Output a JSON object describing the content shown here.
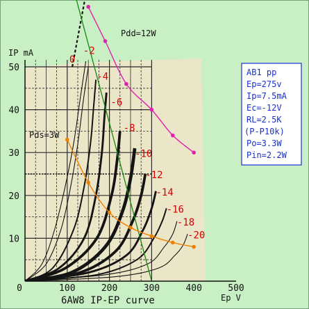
{
  "chart_data": {
    "type": "line",
    "title": "6AW8 IP-EP curve",
    "xlabel": "Ep V",
    "ylabel": "IP mA",
    "xlim": [
      0,
      500
    ],
    "ylim": [
      0,
      50
    ],
    "x_ticks": [
      "0",
      "100",
      "200",
      "300",
      "400",
      "500"
    ],
    "y_ticks": [
      "10",
      "20",
      "30",
      "40",
      "50"
    ],
    "grid": true,
    "series": [
      {
        "name": "0",
        "points": [
          [
            0,
            0
          ],
          [
            40,
            4
          ],
          [
            70,
            12
          ],
          [
            95,
            22
          ],
          [
            115,
            32
          ],
          [
            130,
            42
          ],
          [
            145,
            52
          ]
        ]
      },
      {
        "name": "-2",
        "points": [
          [
            0,
            0
          ],
          [
            50,
            4
          ],
          [
            85,
            12
          ],
          [
            108,
            22
          ],
          [
            125,
            32
          ],
          [
            138,
            42
          ],
          [
            150,
            50
          ]
        ]
      },
      {
        "name": "-4",
        "points": [
          [
            0,
            0
          ],
          [
            65,
            3
          ],
          [
            115,
            12
          ],
          [
            140,
            22
          ],
          [
            155,
            32
          ],
          [
            162,
            40
          ],
          [
            168,
            47
          ]
        ]
      },
      {
        "name": "-6",
        "points": [
          [
            0,
            0
          ],
          [
            80,
            3
          ],
          [
            140,
            10
          ],
          [
            168,
            20
          ],
          [
            182,
            30
          ],
          [
            188,
            38
          ],
          [
            193,
            44
          ]
        ]
      },
      {
        "name": "-8",
        "points": [
          [
            0,
            0
          ],
          [
            95,
            3
          ],
          [
            170,
            10
          ],
          [
            205,
            20
          ],
          [
            218,
            28
          ],
          [
            225,
            35
          ]
        ]
      },
      {
        "name": "-10",
        "points": [
          [
            0,
            0
          ],
          [
            110,
            2
          ],
          [
            190,
            8
          ],
          [
            230,
            16
          ],
          [
            250,
            24
          ],
          [
            260,
            31
          ]
        ]
      },
      {
        "name": "-12",
        "points": [
          [
            0,
            0
          ],
          [
            130,
            2
          ],
          [
            215,
            7
          ],
          [
            255,
            14
          ],
          [
            275,
            20
          ],
          [
            285,
            25
          ]
        ]
      },
      {
        "name": "-14",
        "points": [
          [
            0,
            0
          ],
          [
            150,
            2
          ],
          [
            240,
            6
          ],
          [
            280,
            12
          ],
          [
            300,
            17
          ],
          [
            310,
            21
          ]
        ]
      },
      {
        "name": "-16",
        "points": [
          [
            0,
            0
          ],
          [
            170,
            1.5
          ],
          [
            265,
            5
          ],
          [
            305,
            10
          ],
          [
            325,
            14
          ],
          [
            335,
            17
          ]
        ]
      },
      {
        "name": "-18",
        "points": [
          [
            0,
            0
          ],
          [
            190,
            1.5
          ],
          [
            290,
            4
          ],
          [
            330,
            8
          ],
          [
            350,
            11
          ],
          [
            360,
            14
          ]
        ]
      },
      {
        "name": "-20",
        "points": [
          [
            0,
            0
          ],
          [
            210,
            1
          ],
          [
            315,
            3
          ],
          [
            355,
            6
          ],
          [
            375,
            8.5
          ],
          [
            385,
            11
          ]
        ]
      }
    ],
    "pdd_curve": {
      "label": "Pdd=12W",
      "points": [
        [
          150,
          64
        ],
        [
          190,
          56
        ],
        [
          240,
          46
        ],
        [
          300,
          40
        ],
        [
          350,
          34
        ],
        [
          400,
          30
        ]
      ]
    },
    "pds_curve": {
      "label": "Pds=3W",
      "points": [
        [
          100,
          33
        ],
        [
          150,
          23
        ],
        [
          200,
          16
        ],
        [
          250,
          12.5
        ],
        [
          300,
          10.5
        ],
        [
          350,
          9
        ],
        [
          400,
          8
        ]
      ]
    },
    "load_line": {
      "points": [
        [
          110,
          70
        ],
        [
          300,
          0
        ]
      ]
    },
    "cutoff_line": {
      "points": [
        [
          112,
          50
        ],
        [
          150,
          70
        ]
      ]
    },
    "grid_labels": [
      {
        "text": "0",
        "x": 105,
        "y": 51
      },
      {
        "text": "-2",
        "x": 138,
        "y": 53
      },
      {
        "text": "-4",
        "x": 170,
        "y": 47
      },
      {
        "text": "-6",
        "x": 203,
        "y": 41
      },
      {
        "text": "-8",
        "x": 233,
        "y": 35
      },
      {
        "text": "-10",
        "x": 260,
        "y": 29
      },
      {
        "text": "-12",
        "x": 285,
        "y": 24
      },
      {
        "text": "-14",
        "x": 310,
        "y": 20
      },
      {
        "text": "-16",
        "x": 335,
        "y": 16
      },
      {
        "text": "-18",
        "x": 360,
        "y": 13
      },
      {
        "text": "-20",
        "x": 385,
        "y": 10
      }
    ]
  },
  "notes": {
    "lines": [
      "AB1 pp",
      "Ep=275v",
      "Ip=7.5mA",
      "Ec=-12V",
      "RL=2.5K",
      "(P-P10k)",
      "Po=3.3W",
      "Pin=2.2W"
    ]
  },
  "colors": {
    "background": "#c9f0c5",
    "plot_paper": "#ece6c8",
    "grid_label": "#d40000",
    "pdd": "#e020b0",
    "pds": "#f08000",
    "load_line": "#108a10",
    "note_border": "#1a2fd0",
    "note_text": "#1a2fd0"
  }
}
